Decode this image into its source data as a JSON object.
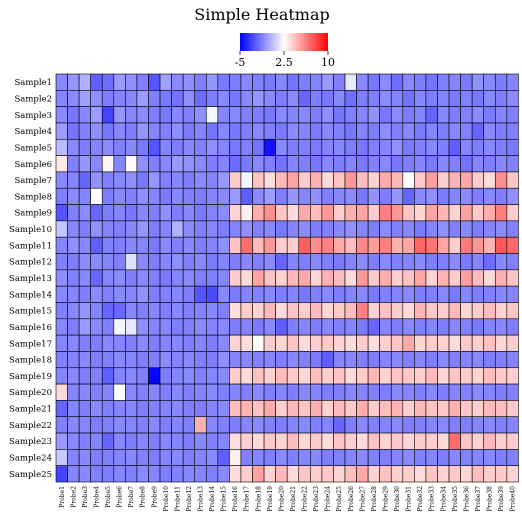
{
  "chart_data": {
    "type": "heatmap",
    "title": "Simple Heatmap",
    "colorbar": {
      "min": -5,
      "max": 10,
      "mid": 2.5,
      "tick_values": [
        -5,
        2.5,
        10
      ],
      "tick_labels": [
        "-5",
        "2.5",
        "10"
      ],
      "colors": [
        "#0000ff",
        "#ffffff",
        "#ff0000"
      ]
    },
    "rows": [
      "Sample1",
      "Sample2",
      "Sample3",
      "Sample4",
      "Sample5",
      "Sample6",
      "Sample7",
      "Sample8",
      "Sample9",
      "Sample10",
      "Sample11",
      "Sample12",
      "Sample13",
      "Sample14",
      "Sample15",
      "Sample16",
      "Sample17",
      "Sample18",
      "Sample19",
      "Sample20",
      "Sample21",
      "Sample22",
      "Sample23",
      "Sample24",
      "Sample25"
    ],
    "columns": [
      "Probe1",
      "Probe2",
      "Probe3",
      "Probe4",
      "Probe5",
      "Probe6",
      "Probe7",
      "Probe8",
      "Probe9",
      "Probe10",
      "Probe11",
      "Probe12",
      "Probe13",
      "Probe14",
      "Probe15",
      "Probe16",
      "Probe17",
      "Probe18",
      "Probe19",
      "Probe20",
      "Probe21",
      "Probe22",
      "Probe23",
      "Probe24",
      "Probe25",
      "Probe26",
      "Probe27",
      "Probe28",
      "Probe29",
      "Probe30",
      "Probe31",
      "Probe32",
      "Probe33",
      "Probe34",
      "Probe35",
      "Probe36",
      "Probe37",
      "Probe38",
      "Probe39",
      "Probe40"
    ],
    "values": [
      [
        -1.0,
        -0.6,
        0.2,
        -2.2,
        -1.8,
        -0.5,
        -0.8,
        -1.2,
        -2.5,
        -0.3,
        -1.0,
        -0.8,
        -1.2,
        -0.6,
        -1.4,
        -1.3,
        -1.0,
        -1.2,
        -1.4,
        -1.0,
        -1.6,
        -1.3,
        -1.1,
        -0.5,
        -1.2,
        1.8,
        -1.0,
        -1.5,
        -0.9,
        -1.8,
        -1.0,
        -1.3,
        -1.6,
        -1.2,
        -1.1,
        -1.4,
        -0.7,
        -1.0,
        -1.3,
        -1.1
      ],
      [
        -1.1,
        -0.9,
        -0.3,
        -0.8,
        -1.3,
        -1.1,
        -1.0,
        -0.4,
        -1.2,
        -1.4,
        -1.6,
        -0.8,
        -1.8,
        -1.3,
        -1.0,
        -1.5,
        -1.0,
        -0.6,
        -1.0,
        -1.3,
        -0.9,
        -2.0,
        -1.2,
        -1.5,
        -1.0,
        -1.7,
        -1.3,
        -1.2,
        -0.9,
        -1.1,
        -1.6,
        -1.0,
        -1.3,
        -1.1,
        -1.4,
        -1.2,
        -1.5,
        -1.0,
        -1.3,
        -0.9
      ],
      [
        -0.9,
        -1.5,
        -1.0,
        -0.4,
        -3.0,
        -0.6,
        -1.1,
        -0.9,
        -1.3,
        -1.4,
        -1.0,
        -1.2,
        -0.8,
        2.2,
        -1.1,
        -1.0,
        -1.2,
        -1.3,
        -1.5,
        -1.0,
        -1.1,
        -1.0,
        -1.3,
        -0.8,
        -1.6,
        -1.2,
        -1.1,
        -0.7,
        -1.5,
        -0.9,
        -1.3,
        -1.1,
        -2.0,
        -1.0,
        -1.3,
        -1.2,
        -0.9,
        -1.4,
        -1.1,
        -1.2
      ],
      [
        -0.4,
        -1.6,
        -1.2,
        -0.8,
        -1.5,
        -1.0,
        -1.3,
        -0.6,
        -1.1,
        -1.2,
        -0.8,
        -1.4,
        -1.1,
        -1.6,
        -1.0,
        -1.5,
        -1.3,
        -1.0,
        -1.2,
        -1.4,
        -0.9,
        -1.1,
        -1.4,
        -1.0,
        -1.2,
        -1.5,
        -1.1,
        -1.3,
        -0.8,
        -1.2,
        -1.0,
        -1.4,
        -1.1,
        -1.3,
        -1.0,
        -1.2,
        -2.0,
        -0.9,
        -1.3,
        -1.2
      ],
      [
        0.5,
        -1.0,
        -1.3,
        -1.1,
        -0.9,
        -1.2,
        -1.0,
        -1.4,
        -2.5,
        -1.1,
        -1.3,
        -1.0,
        -1.2,
        -0.8,
        -1.1,
        -1.5,
        -1.2,
        -1.6,
        -4.5,
        -1.0,
        -1.3,
        -1.2,
        -1.4,
        -1.1,
        -1.0,
        -1.3,
        -1.5,
        -1.2,
        -1.1,
        -0.7,
        -1.4,
        -1.2,
        -1.0,
        -1.3,
        -2.2,
        -1.1,
        -1.3,
        -1.0,
        -1.2,
        -1.4
      ],
      [
        3.2,
        -1.2,
        -0.6,
        -1.0,
        2.8,
        -1.1,
        2.4,
        -0.8,
        -1.2,
        -1.0,
        -0.5,
        -0.7,
        -1.0,
        -1.3,
        -1.1,
        -1.8,
        -1.4,
        -1.0,
        -1.3,
        -1.6,
        -1.1,
        -1.2,
        -1.5,
        -1.0,
        -1.3,
        -1.1,
        -1.4,
        -1.2,
        -1.0,
        -1.5,
        -1.3,
        -1.1,
        -1.4,
        -1.0,
        -1.2,
        -1.6,
        -1.1,
        -1.3,
        -1.0,
        -1.2
      ],
      [
        -1.0,
        -1.1,
        -2.0,
        -0.7,
        -1.2,
        -1.0,
        -0.8,
        -1.5,
        -0.6,
        -1.2,
        -1.0,
        -1.3,
        -0.9,
        -1.1,
        -0.5,
        4.0,
        2.2,
        4.3,
        3.5,
        4.5,
        5.2,
        4.0,
        4.8,
        3.6,
        4.2,
        5.5,
        4.4,
        3.8,
        5.0,
        4.6,
        2.6,
        4.1,
        5.3,
        3.9,
        4.7,
        5.1,
        4.0,
        3.5,
        5.8,
        4.2
      ],
      [
        -1.2,
        -0.9,
        -1.1,
        2.5,
        -1.3,
        -1.0,
        -1.2,
        -0.8,
        -1.1,
        -1.4,
        -1.0,
        -1.2,
        -1.3,
        -1.1,
        -1.0,
        -0.5,
        -2.2,
        -1.0,
        -0.4,
        -1.3,
        -0.6,
        -1.1,
        -0.8,
        -1.2,
        -1.0,
        -0.9,
        -1.5,
        -0.7,
        -1.3,
        -0.6,
        -2.0,
        -1.0,
        -0.8,
        -1.4,
        -1.1,
        -0.9,
        -1.3,
        -1.0,
        -1.2,
        -0.8
      ],
      [
        -2.5,
        -1.2,
        -0.9,
        -2.0,
        -1.3,
        -1.1,
        -1.5,
        -1.0,
        -1.2,
        -0.8,
        -1.3,
        -1.0,
        -1.4,
        -1.1,
        -0.9,
        3.8,
        3.0,
        4.9,
        5.8,
        4.2,
        3.6,
        5.0,
        4.4,
        5.5,
        3.9,
        4.8,
        5.2,
        4.0,
        6.2,
        5.6,
        4.3,
        3.7,
        5.1,
        4.6,
        3.8,
        5.3,
        4.1,
        4.9,
        6.3,
        4.0
      ],
      [
        0.8,
        -1.0,
        -1.3,
        -0.7,
        -1.1,
        -1.2,
        -1.0,
        -0.6,
        -1.3,
        -1.1,
        0.2,
        -0.9,
        -1.2,
        -1.0,
        -1.3,
        -1.1,
        -0.8,
        -1.2,
        -1.0,
        -1.4,
        -1.1,
        -0.9,
        -1.3,
        -1.2,
        -1.0,
        -0.7,
        -1.1,
        -1.3,
        -0.9,
        -1.2,
        -1.0,
        -1.4,
        -1.1,
        -0.8,
        -1.2,
        -1.0,
        -1.3,
        -1.1,
        -0.9,
        -1.2
      ],
      [
        -1.1,
        -0.8,
        -1.0,
        -2.2,
        -1.2,
        -1.3,
        -1.0,
        -1.1,
        -1.4,
        -0.9,
        -1.2,
        -1.0,
        -1.3,
        -1.1,
        -0.8,
        4.2,
        6.8,
        4.5,
        5.5,
        4.0,
        3.9,
        7.2,
        5.8,
        6.2,
        5.0,
        4.5,
        6.0,
        5.4,
        6.3,
        4.8,
        5.1,
        7.0,
        6.6,
        5.2,
        4.0,
        6.4,
        5.6,
        4.7,
        7.4,
        6.9
      ],
      [
        -1.2,
        -1.3,
        -0.9,
        -1.0,
        -1.1,
        -1.2,
        1.6,
        -1.0,
        -1.3,
        -1.1,
        -0.8,
        -1.2,
        -1.0,
        -1.4,
        -1.1,
        -1.3,
        -1.0,
        -1.2,
        -0.9,
        -2.0,
        -1.1,
        -1.3,
        -1.0,
        -1.2,
        -1.4,
        -1.1,
        -0.9,
        -1.3,
        -1.0,
        -1.2,
        -1.1,
        -1.0,
        -1.3,
        -1.2,
        -0.9,
        -1.4,
        -1.1,
        -1.8,
        -1.0,
        -1.2
      ],
      [
        -0.8,
        -1.2,
        -1.0,
        -2.0,
        -1.1,
        -0.9,
        -1.3,
        -1.0,
        -1.2,
        -1.4,
        -1.1,
        -1.0,
        -1.3,
        -1.2,
        -1.1,
        4.0,
        3.6,
        5.2,
        4.2,
        3.8,
        4.6,
        5.0,
        3.7,
        4.8,
        4.4,
        3.5,
        5.5,
        4.1,
        4.9,
        3.9,
        4.3,
        5.1,
        3.8,
        4.7,
        4.0,
        5.3,
        4.5,
        3.6,
        4.8,
        4.2
      ],
      [
        -1.0,
        -1.1,
        -1.3,
        -0.9,
        -1.2,
        -1.0,
        -1.1,
        -0.7,
        -1.3,
        -1.2,
        -1.0,
        -1.3,
        -2.5,
        -2.8,
        -1.0,
        -1.4,
        -1.1,
        -1.2,
        -1.0,
        -1.3,
        -1.1,
        -1.5,
        -1.2,
        -1.0,
        -1.3,
        -1.1,
        -1.0,
        -1.4,
        -1.2,
        -1.1,
        -1.0,
        -1.3,
        -1.2,
        -1.0,
        -1.4,
        -1.1,
        -1.3,
        -1.2,
        -1.0,
        -1.1
      ],
      [
        -1.2,
        -1.0,
        -0.6,
        -1.1,
        -2.0,
        -1.9,
        -1.0,
        -1.2,
        -1.1,
        -1.3,
        -1.0,
        -1.2,
        -1.1,
        -1.0,
        -1.3,
        3.5,
        4.0,
        3.8,
        4.6,
        3.6,
        4.2,
        3.9,
        4.5,
        3.7,
        4.1,
        4.4,
        6.2,
        3.8,
        4.3,
        4.0,
        3.6,
        4.7,
        4.1,
        3.9,
        4.5,
        3.7,
        4.0,
        4.4,
        3.8,
        4.2
      ],
      [
        -1.0,
        -1.3,
        -0.5,
        -1.0,
        -1.2,
        2.2,
        1.8,
        -0.8,
        -1.1,
        -1.0,
        -1.3,
        -1.2,
        -0.9,
        -1.1,
        -1.0,
        -1.3,
        -1.1,
        -1.4,
        -1.0,
        -2.2,
        -1.2,
        -1.1,
        -1.3,
        -1.0,
        -1.2,
        -1.1,
        -1.4,
        -2.0,
        -1.1,
        -1.3,
        -1.0,
        -1.2,
        -1.1,
        -1.3,
        -1.0,
        -1.2,
        -1.4,
        -1.1,
        -1.0,
        -1.3
      ],
      [
        -1.1,
        -1.0,
        -1.2,
        -1.3,
        -1.0,
        -1.1,
        -1.2,
        -1.0,
        -1.3,
        -1.1,
        -1.0,
        -1.2,
        -1.1,
        -1.3,
        -1.0,
        3.8,
        3.5,
        2.6,
        4.0,
        3.7,
        4.2,
        3.6,
        3.9,
        4.1,
        3.8,
        3.6,
        4.0,
        3.5,
        3.9,
        4.2,
        5.0,
        3.7,
        4.0,
        3.8,
        3.6,
        4.1,
        3.9,
        4.3,
        3.7,
        4.0
      ],
      [
        -1.2,
        -1.1,
        -1.0,
        -1.3,
        -1.2,
        -1.0,
        -1.1,
        -1.3,
        -1.2,
        -0.9,
        -1.1,
        -1.0,
        -1.2,
        -1.3,
        -0.8,
        -1.1,
        -1.0,
        -1.2,
        -1.1,
        -1.3,
        -1.0,
        -1.2,
        -1.4,
        -2.2,
        -1.1,
        -1.0,
        -1.2,
        -1.3,
        -1.1,
        -1.0,
        -1.2,
        -1.1,
        -1.3,
        -1.0,
        -1.2,
        -1.1,
        -1.0,
        -1.3,
        -1.2,
        -1.1
      ],
      [
        -1.1,
        -1.0,
        -1.3,
        -1.2,
        -2.2,
        -1.1,
        -1.0,
        -1.2,
        -4.8,
        -1.3,
        -1.1,
        -1.0,
        -1.2,
        -1.1,
        -1.0,
        4.0,
        3.6,
        4.3,
        3.8,
        4.5,
        4.1,
        3.7,
        4.4,
        3.9,
        4.2,
        3.6,
        4.0,
        4.6,
        3.8,
        4.3,
        4.1,
        3.9,
        4.5,
        3.7,
        4.2,
        4.0,
        3.8,
        4.4,
        4.1,
        3.9
      ],
      [
        3.6,
        -1.1,
        -1.0,
        -1.2,
        -1.1,
        2.6,
        -1.0,
        -1.2,
        -1.1,
        -1.3,
        -1.0,
        -1.2,
        -1.1,
        -1.0,
        -1.3,
        -1.1,
        -1.2,
        -1.0,
        -1.3,
        -1.1,
        -1.2,
        -1.0,
        -1.1,
        -1.3,
        -1.2,
        -1.0,
        -1.1,
        -1.2,
        -1.3,
        -1.0,
        -1.1,
        -1.2,
        -1.0,
        -1.3,
        -1.1,
        -1.2,
        -1.0,
        -1.1,
        -1.3,
        -1.2
      ],
      [
        -2.0,
        -1.1,
        -1.3,
        -1.0,
        -1.2,
        -1.1,
        -1.0,
        -1.3,
        -1.2,
        -1.1,
        -1.0,
        -1.2,
        -1.3,
        -1.1,
        -1.0,
        4.4,
        4.7,
        4.3,
        5.0,
        3.9,
        4.6,
        4.2,
        4.8,
        3.8,
        4.5,
        4.1,
        4.9,
        4.0,
        4.4,
        4.7,
        3.9,
        4.6,
        4.3,
        4.1,
        4.8,
        4.2,
        3.9,
        4.5,
        4.4,
        4.1
      ],
      [
        -1.2,
        -1.0,
        -1.1,
        -1.3,
        -1.2,
        -1.0,
        -1.1,
        -1.2,
        -1.0,
        -1.3,
        -1.1,
        -1.2,
        4.8,
        -1.0,
        -1.2,
        -1.3,
        -1.1,
        -1.0,
        -1.2,
        -1.3,
        -1.1,
        -1.0,
        -1.2,
        -1.1,
        -2.0,
        -1.3,
        -1.0,
        -1.2,
        -1.1,
        -1.0,
        -1.3,
        -1.2,
        -1.1,
        -1.0,
        -1.2,
        -1.3,
        -1.1,
        -1.0,
        -1.2,
        -1.1
      ],
      [
        -0.5,
        -1.0,
        -1.2,
        -1.1,
        -2.0,
        -1.0,
        -1.3,
        -1.1,
        -1.2,
        -1.0,
        -1.1,
        -1.3,
        -1.0,
        -1.2,
        -1.1,
        3.4,
        3.9,
        3.6,
        4.1,
        3.8,
        4.4,
        3.7,
        4.0,
        3.5,
        4.2,
        3.9,
        3.6,
        4.3,
        3.8,
        4.1,
        3.7,
        4.0,
        3.9,
        3.6,
        6.8,
        4.2,
        3.8,
        4.5,
        3.9,
        4.0
      ],
      [
        0.9,
        -1.1,
        -1.0,
        -1.3,
        -1.2,
        -1.1,
        -1.0,
        -1.2,
        -1.3,
        -1.1,
        -1.0,
        -1.2,
        -1.1,
        -1.0,
        -2.2,
        3.0,
        -1.2,
        -1.1,
        -1.3,
        -1.0,
        -1.2,
        -1.1,
        -1.0,
        -1.3,
        -1.2,
        -1.1,
        -1.0,
        -1.2,
        -1.3,
        -1.1,
        -1.0,
        -1.2,
        -1.1,
        -1.3,
        -1.0,
        -1.2,
        -1.1,
        -1.0,
        -1.3,
        -1.2
      ],
      [
        -3.0,
        -1.1,
        -1.0,
        -1.2,
        -1.3,
        -1.1,
        -1.2,
        -1.0,
        -1.1,
        -1.3,
        -1.2,
        -1.0,
        -1.1,
        -1.2,
        -1.0,
        3.5,
        4.0,
        5.2,
        3.8,
        4.5,
        3.6,
        4.2,
        3.9,
        4.1,
        3.7,
        4.4,
        5.0,
        3.8,
        4.3,
        3.9,
        4.0,
        3.6,
        4.2,
        3.8,
        4.1,
        3.7,
        4.4,
        3.9,
        4.0,
        3.8
      ]
    ]
  }
}
